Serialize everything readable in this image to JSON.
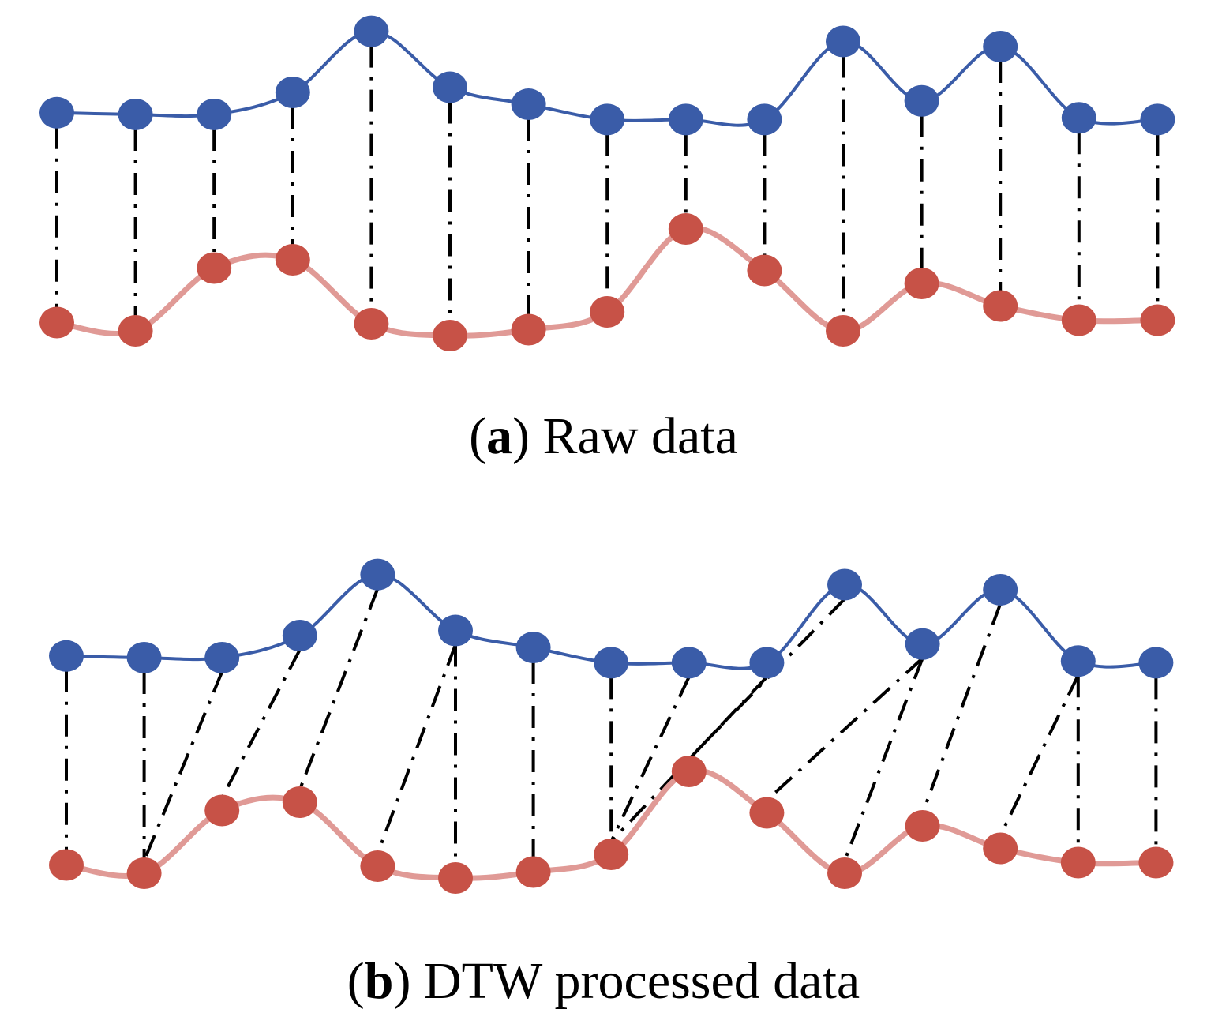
{
  "figure": {
    "panels": [
      {
        "id": "a",
        "caption_label": "a",
        "caption_text": " Raw data",
        "blue_series": [
          0.08,
          0.07,
          0.07,
          0.2,
          0.56,
          0.23,
          0.13,
          0.04,
          0.04,
          0.04,
          0.5,
          0.15,
          0.47,
          0.05,
          0.04
        ],
        "red_series": [
          0.11,
          0.04,
          0.57,
          0.64,
          0.1,
          0.0,
          0.05,
          0.2,
          0.9,
          0.55,
          0.04,
          0.44,
          0.25,
          0.13,
          0.13
        ],
        "links": [
          [
            0,
            0
          ],
          [
            1,
            1
          ],
          [
            2,
            2
          ],
          [
            3,
            3
          ],
          [
            4,
            4
          ],
          [
            5,
            5
          ],
          [
            6,
            6
          ],
          [
            7,
            7
          ],
          [
            8,
            8
          ],
          [
            9,
            9
          ],
          [
            10,
            10
          ],
          [
            11,
            11
          ],
          [
            12,
            12
          ],
          [
            13,
            13
          ],
          [
            14,
            14
          ]
        ]
      },
      {
        "id": "b",
        "caption_label": "b",
        "caption_text": " DTW processed data",
        "blue_series": [
          0.08,
          0.07,
          0.07,
          0.2,
          0.56,
          0.23,
          0.13,
          0.04,
          0.04,
          0.04,
          0.5,
          0.15,
          0.47,
          0.05,
          0.04
        ],
        "red_series": [
          0.11,
          0.04,
          0.57,
          0.64,
          0.1,
          0.0,
          0.05,
          0.2,
          0.9,
          0.55,
          0.04,
          0.44,
          0.25,
          0.13,
          0.13
        ],
        "links": [
          [
            0,
            0
          ],
          [
            1,
            1
          ],
          [
            2,
            1
          ],
          [
            3,
            2
          ],
          [
            4,
            3
          ],
          [
            5,
            4
          ],
          [
            5,
            5
          ],
          [
            6,
            6
          ],
          [
            7,
            7
          ],
          [
            8,
            7
          ],
          [
            9,
            7
          ],
          [
            10,
            8
          ],
          [
            11,
            9
          ],
          [
            11,
            10
          ],
          [
            12,
            11
          ],
          [
            13,
            12
          ],
          [
            13,
            13
          ],
          [
            14,
            14
          ]
        ]
      }
    ],
    "colors": {
      "blue": "#3a5ca8",
      "red_point": "#c75247",
      "red_line": "#e09a96",
      "link": "#000000"
    }
  }
}
